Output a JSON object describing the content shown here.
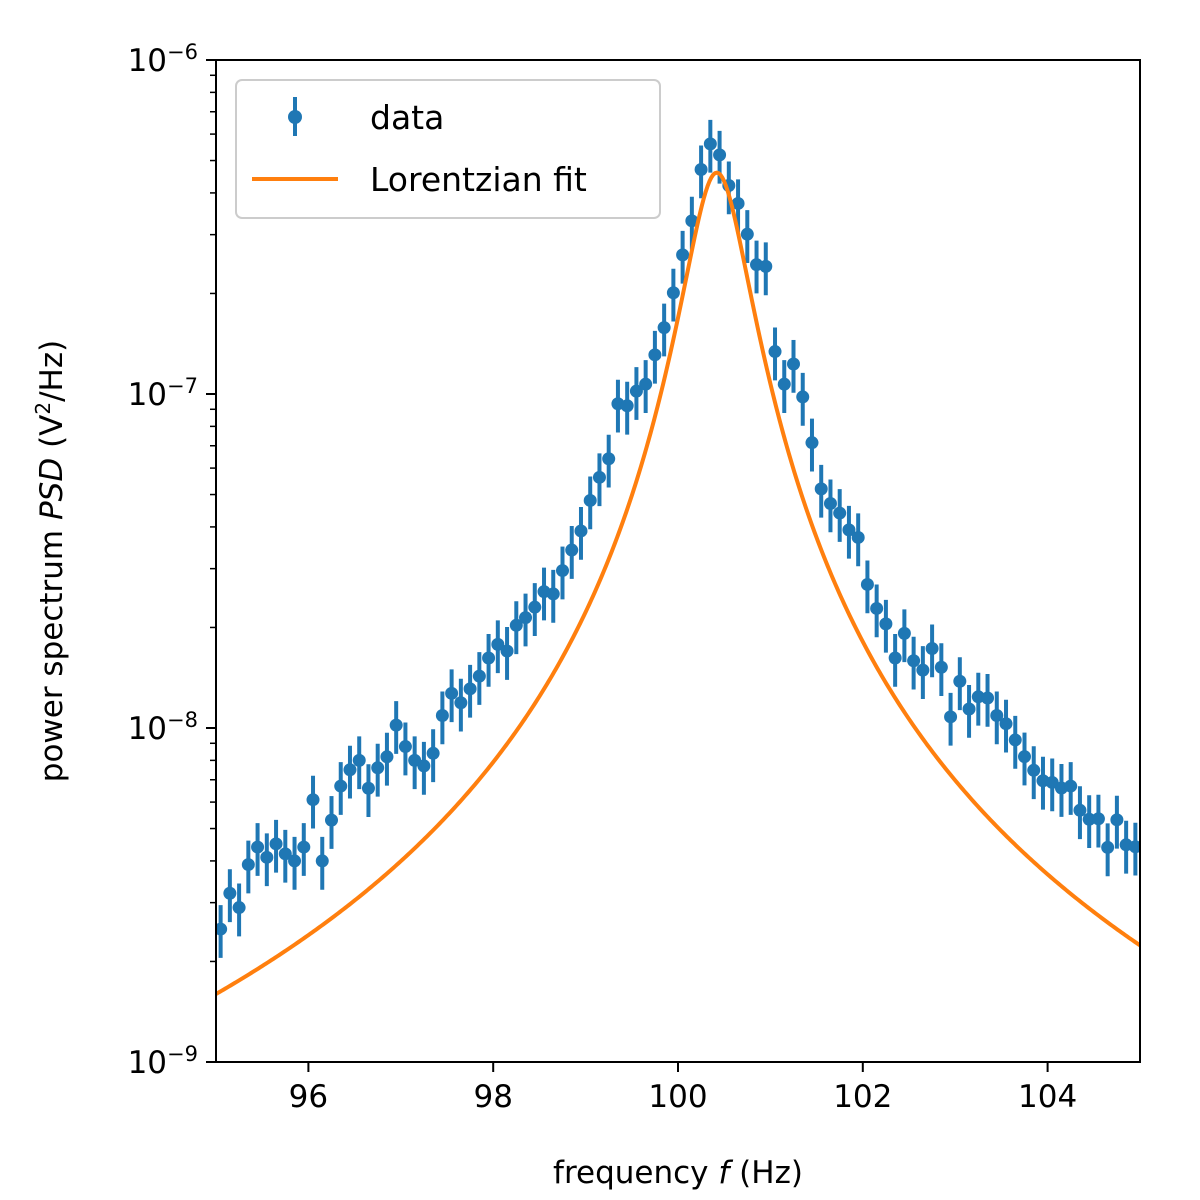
{
  "chart_data": {
    "type": "scatter",
    "title": "",
    "xlabel": {
      "prefix": "frequency ",
      "var": "f",
      "suffix": "  (Hz)"
    },
    "ylabel": {
      "prefix": "power spectrum ",
      "var": "PSD",
      "mid": "  (V",
      "sup": "2",
      "suffix": "/Hz)"
    },
    "xlim": [
      95,
      105
    ],
    "ylim": [
      1e-09,
      1e-06
    ],
    "yscale": "log",
    "x_ticks": [
      {
        "value": 96,
        "label": "96"
      },
      {
        "value": 98,
        "label": "98"
      },
      {
        "value": 100,
        "label": "100"
      },
      {
        "value": 102,
        "label": "102"
      },
      {
        "value": 104,
        "label": "104"
      }
    ],
    "y_ticks": [
      {
        "value": 1e-09,
        "base": "10",
        "exp": "−9"
      },
      {
        "value": 1e-08,
        "base": "10",
        "exp": "−8"
      },
      {
        "value": 1e-07,
        "base": "10",
        "exp": "−7"
      },
      {
        "value": 1e-06,
        "base": "10",
        "exp": "−6"
      }
    ],
    "legend": {
      "position": "upper-left",
      "entries": [
        {
          "label": "data",
          "kind": "errorbar",
          "color": "#1f77b4"
        },
        {
          "label": "Lorentzian fit",
          "kind": "line",
          "color": "#ff7f0e"
        }
      ]
    },
    "fit": {
      "name": "Lorentzian fit",
      "model": "lorentzian",
      "center": 100.42,
      "half_width": 0.32,
      "peak": 4.6e-07,
      "color": "#ff7f0e"
    },
    "data_series": {
      "name": "data",
      "color": "#1f77b4",
      "relative_error": 0.18,
      "x": [
        95.05,
        95.15,
        95.25,
        95.35,
        95.45,
        95.55,
        95.65,
        95.75,
        95.85,
        95.95,
        96.05,
        96.15,
        96.25,
        96.35,
        96.45,
        96.55,
        96.65,
        96.75,
        96.85,
        96.95,
        97.05,
        97.15,
        97.25,
        97.35,
        97.45,
        97.55,
        97.65,
        97.75,
        97.85,
        97.95,
        98.05,
        98.15,
        98.25,
        98.35,
        98.45,
        98.55,
        98.65,
        98.75,
        98.85,
        98.95,
        99.05,
        99.15,
        99.25,
        99.35,
        99.45,
        99.55,
        99.65,
        99.75,
        99.85,
        99.95,
        100.05,
        100.15,
        100.25,
        100.35,
        100.45,
        100.55,
        100.65,
        100.75,
        100.85,
        100.95,
        101.05,
        101.15,
        101.25,
        101.35,
        101.45,
        101.55,
        101.65,
        101.75,
        101.85,
        101.95,
        102.05,
        102.15,
        102.25,
        102.35,
        102.45,
        102.55,
        102.65,
        102.75,
        102.85,
        102.95,
        103.05,
        103.15,
        103.25,
        103.35,
        103.45,
        103.55,
        103.65,
        103.75,
        103.85,
        103.95,
        104.05,
        104.15,
        104.25,
        104.35,
        104.45,
        104.55,
        104.65,
        104.75,
        104.85,
        104.95
      ],
      "y": [
        2.5e-09,
        3.2e-09,
        2.9e-09,
        3.9e-09,
        4.4e-09,
        4.1e-09,
        4.5e-09,
        4.2e-09,
        4e-09,
        4.4e-09,
        6.1e-09,
        4e-09,
        5.3e-09,
        6.7e-09,
        7.5e-09,
        8e-09,
        6.6e-09,
        7.6e-09,
        8.2e-09,
        1.02e-08,
        8.8e-09,
        8e-09,
        7.7e-09,
        8.4e-09,
        1.09e-08,
        1.27e-08,
        1.19e-08,
        1.31e-08,
        1.43e-08,
        1.62e-08,
        1.78e-08,
        1.7e-08,
        2.03e-08,
        2.14e-08,
        2.3e-08,
        2.56e-08,
        2.52e-08,
        2.96e-08,
        3.41e-08,
        3.89e-08,
        4.8e-08,
        5.63e-08,
        6.4e-08,
        9.35e-08,
        9.22e-08,
        1.02e-07,
        1.07e-07,
        1.31e-07,
        1.58e-07,
        2.01e-07,
        2.61e-07,
        3.3e-07,
        4.7e-07,
        5.61e-07,
        5.2e-07,
        4.21e-07,
        3.72e-07,
        3.01e-07,
        2.44e-07,
        2.41e-07,
        1.34e-07,
        1.07e-07,
        1.23e-07,
        9.8e-08,
        7.15e-08,
        5.2e-08,
        4.7e-08,
        4.4e-08,
        3.92e-08,
        3.72e-08,
        2.69e-08,
        2.28e-08,
        2.05e-08,
        1.62e-08,
        1.92e-08,
        1.59e-08,
        1.49e-08,
        1.73e-08,
        1.52e-08,
        1.08e-08,
        1.38e-08,
        1.14e-08,
        1.24e-08,
        1.23e-08,
        1.09e-08,
        1.03e-08,
        9.21e-09,
        8.21e-09,
        7.47e-09,
        6.95e-09,
        6.87e-09,
        6.61e-09,
        6.7e-09,
        5.67e-09,
        5.33e-09,
        5.35e-09,
        4.39e-09,
        5.31e-09,
        4.47e-09,
        4.41e-09
      ]
    }
  }
}
